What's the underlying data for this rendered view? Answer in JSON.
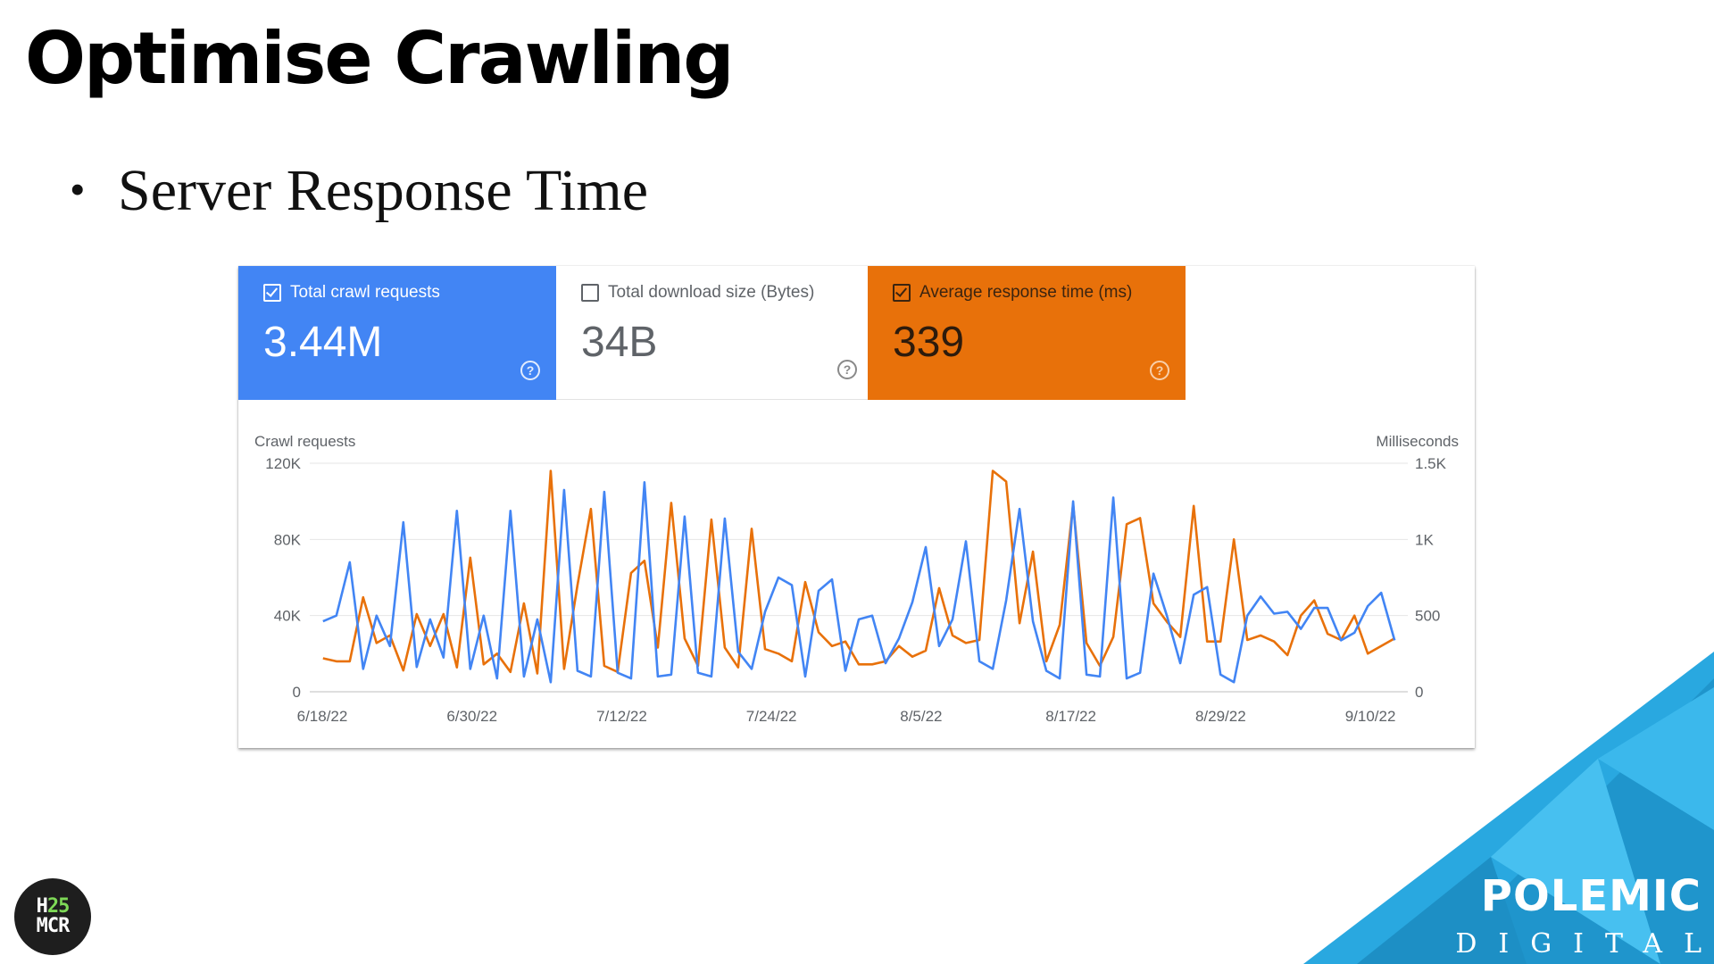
{
  "slide": {
    "title": "Optimise Crawling",
    "bullet": "Server Response Time"
  },
  "cards": [
    {
      "label": "Total crawl requests",
      "value": "3.44M",
      "checked": true,
      "color": "#4285f4"
    },
    {
      "label": "Total download size (Bytes)",
      "value": "34B",
      "checked": false,
      "color": "#ffffff"
    },
    {
      "label": "Average response time (ms)",
      "value": "339",
      "checked": true,
      "color": "#e8710a"
    }
  ],
  "help_icon": "question-circle-icon",
  "chart_data": {
    "type": "line",
    "left_axis_title": "Crawl requests",
    "right_axis_title": "Milliseconds",
    "left_ylim": [
      0,
      120000
    ],
    "right_ylim": [
      0,
      1500
    ],
    "left_ticks": [
      "0",
      "40K",
      "80K",
      "120K"
    ],
    "right_ticks": [
      "0",
      "500",
      "1K",
      "1.5K"
    ],
    "x_tick_labels": [
      "6/18/22",
      "6/30/22",
      "7/12/22",
      "7/24/22",
      "8/5/22",
      "8/17/22",
      "8/29/22",
      "9/10/22"
    ],
    "x_range": [
      "6/17/22",
      "9/13/22"
    ],
    "grid": true,
    "series": [
      {
        "name": "Total crawl requests",
        "axis": "left",
        "color": "#4285f4",
        "values": [
          37000,
          40000,
          68000,
          12000,
          40000,
          24000,
          89000,
          13000,
          38000,
          18000,
          95000,
          12000,
          40000,
          7000,
          95000,
          8000,
          38000,
          5000,
          106000,
          11000,
          8000,
          105000,
          10000,
          7000,
          110000,
          8000,
          9000,
          92000,
          10000,
          8000,
          91000,
          21000,
          12000,
          42000,
          60000,
          56000,
          8000,
          53000,
          59000,
          11000,
          38000,
          40000,
          15000,
          28000,
          47000,
          76000,
          24000,
          38000,
          79000,
          16000,
          12000,
          48000,
          96000,
          37000,
          11000,
          7000,
          100000,
          9000,
          8000,
          102000,
          7000,
          10000,
          62000,
          40000,
          15000,
          51000,
          55000,
          9000,
          5000,
          40000,
          50000,
          41000,
          42000,
          33000,
          44000,
          44000,
          27000,
          31000,
          45000,
          52000,
          27000
        ]
      },
      {
        "name": "Average response time (ms)",
        "axis": "right",
        "color": "#e8710a",
        "values": [
          220,
          200,
          200,
          620,
          320,
          370,
          140,
          510,
          300,
          510,
          160,
          880,
          180,
          250,
          130,
          580,
          120,
          1450,
          150,
          700,
          1200,
          170,
          130,
          780,
          860,
          290,
          1240,
          350,
          170,
          1130,
          290,
          160,
          1070,
          280,
          250,
          200,
          720,
          390,
          300,
          330,
          180,
          180,
          200,
          300,
          230,
          270,
          680,
          370,
          320,
          340,
          1450,
          1380,
          450,
          920,
          200,
          440,
          1230,
          320,
          170,
          360,
          1100,
          1140,
          580,
          460,
          360,
          1220,
          330,
          330,
          1000,
          340,
          370,
          330,
          240,
          500,
          600,
          380,
          340,
          500,
          250,
          300,
          350
        ]
      }
    ]
  },
  "logo": {
    "line1_a": "H",
    "line1_b": "25",
    "line2": "MCR"
  },
  "brand": {
    "name": "POLEMIC",
    "sub": "DIGITAL",
    "accent": "#29a8e0"
  }
}
